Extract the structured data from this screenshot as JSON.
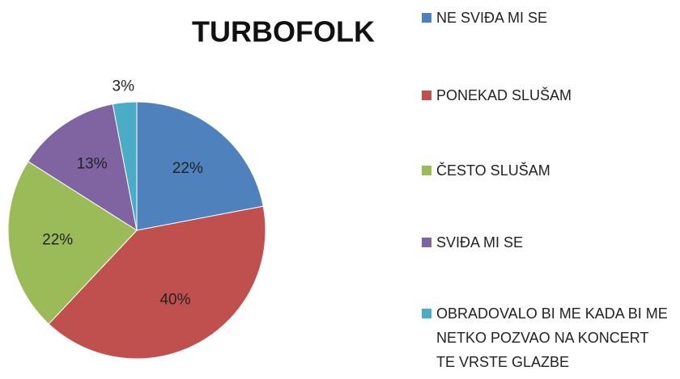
{
  "chart_data": {
    "type": "pie",
    "title": "TURBOFOLK",
    "categories": [
      "NE SVIĐA MI SE",
      "PONEKAD SLUŠAM",
      "ČESTO SLUŠAM",
      "SVIĐA MI SE",
      "OBRADOVALO BI ME KADA BI ME NETKO POZVAO NA KONCERT TE VRSTE GLAZBE"
    ],
    "values": [
      22,
      40,
      22,
      13,
      3
    ],
    "value_labels": [
      "22%",
      "40%",
      "22%",
      "13%",
      "3%"
    ],
    "colors": [
      "#4f81bd",
      "#c0504d",
      "#9bbb59",
      "#8064a2",
      "#4bacc6"
    ],
    "legend": "right"
  }
}
